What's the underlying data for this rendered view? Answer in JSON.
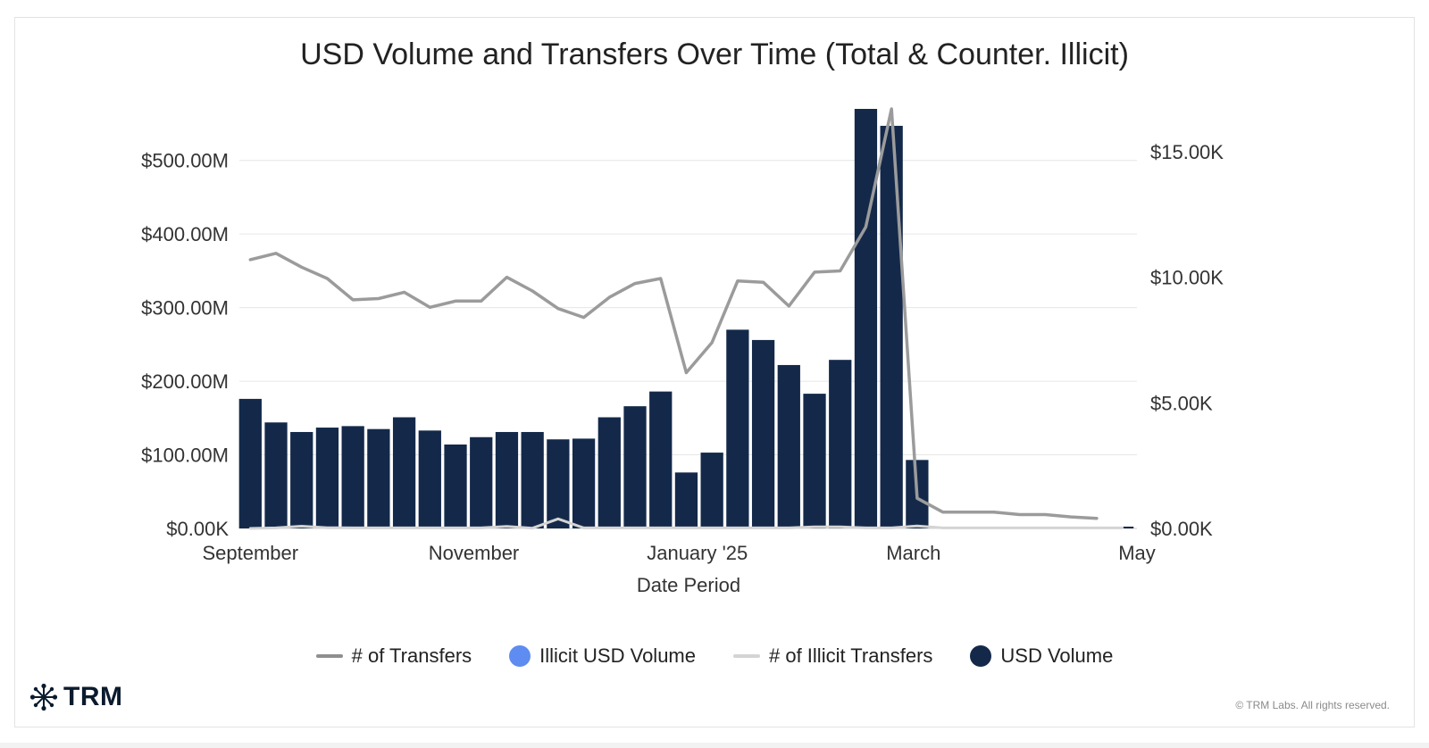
{
  "chart_data": {
    "type": "bar",
    "title": "USD Volume and Transfers Over Time (Total & Counter. Illicit)",
    "xlabel": "Date Period",
    "x_ticks": [
      "September",
      "November",
      "January '25",
      "March",
      "May"
    ],
    "y_left": {
      "ticks": [
        "$0.00K",
        "$100.00M",
        "$200.00M",
        "$300.00M",
        "$400.00M",
        "$500.00M"
      ],
      "range": [
        0,
        570000000
      ]
    },
    "y_right": {
      "ticks": [
        "$0.00K",
        "$5.00K",
        "$10.00K",
        "$15.00K"
      ],
      "range": [
        0,
        16700
      ]
    },
    "grid": true,
    "legend_position": "bottom",
    "x": [
      "2024-09-01",
      "2024-09-08",
      "2024-09-15",
      "2024-09-22",
      "2024-09-29",
      "2024-10-06",
      "2024-10-13",
      "2024-10-20",
      "2024-10-27",
      "2024-11-03",
      "2024-11-10",
      "2024-11-17",
      "2024-11-24",
      "2024-12-01",
      "2024-12-08",
      "2024-12-15",
      "2024-12-22",
      "2024-12-29",
      "2025-01-05",
      "2025-01-12",
      "2025-01-19",
      "2025-01-26",
      "2025-02-02",
      "2025-02-09",
      "2025-02-16",
      "2025-02-23",
      "2025-03-02",
      "2025-03-09",
      "2025-03-16",
      "2025-03-23",
      "2025-03-30",
      "2025-04-06",
      "2025-04-13",
      "2025-04-20",
      "2025-04-27"
    ],
    "series": [
      {
        "name": "USD Volume",
        "axis": "left",
        "kind": "bar",
        "color": "#14294a",
        "values": [
          176000000,
          144000000,
          131000000,
          137000000,
          139000000,
          135000000,
          151000000,
          133000000,
          114000000,
          124000000,
          131000000,
          131000000,
          121000000,
          122000000,
          151000000,
          166000000,
          186000000,
          76000000,
          103000000,
          270000000,
          256000000,
          222000000,
          183000000,
          229000000,
          570000000,
          547000000,
          93000000,
          0,
          0,
          0,
          0,
          0,
          0,
          0,
          2000000
        ]
      },
      {
        "name": "# of Transfers",
        "axis": "right",
        "kind": "line",
        "color": "#9b9b9b",
        "values": [
          10700,
          10950,
          10400,
          9950,
          9100,
          9150,
          9400,
          8800,
          9050,
          9050,
          10000,
          9450,
          8750,
          8400,
          9200,
          9750,
          9950,
          6200,
          7400,
          9850,
          9800,
          8850,
          10200,
          10250,
          12000,
          16700,
          1200,
          650,
          650,
          650,
          550,
          550,
          460,
          400,
          null
        ]
      },
      {
        "name": "# of Illicit Transfers",
        "axis": "right",
        "kind": "line",
        "color": "#d4d4d4",
        "values": [
          0,
          20,
          90,
          30,
          20,
          20,
          20,
          20,
          20,
          20,
          80,
          10,
          380,
          20,
          20,
          20,
          20,
          20,
          20,
          20,
          20,
          20,
          60,
          60,
          20,
          20,
          100,
          20,
          20,
          20,
          20,
          20,
          20,
          20,
          20
        ]
      },
      {
        "name": "Illicit USD Volume",
        "axis": "left",
        "kind": "bar",
        "color": "#5e8cf0",
        "values": [
          0,
          0,
          0,
          0,
          0,
          0,
          0,
          0,
          0,
          0,
          0,
          0,
          0,
          0,
          0,
          0,
          0,
          0,
          0,
          0,
          0,
          0,
          0,
          0,
          0,
          0,
          0,
          0,
          0,
          0,
          0,
          0,
          0,
          0,
          0
        ]
      }
    ]
  },
  "legend": [
    {
      "label": "# of Transfers",
      "shape": "line",
      "color": "#8f8f8f"
    },
    {
      "label": "Illicit USD Volume",
      "shape": "dot",
      "color": "#5e8cf0"
    },
    {
      "label": "# of Illicit Transfers",
      "shape": "line",
      "color": "#d4d4d4"
    },
    {
      "label": "USD Volume",
      "shape": "dot",
      "color": "#14294a"
    }
  ],
  "logo": {
    "text": "TRM",
    "icon": "trm-logo-icon"
  },
  "copyright": "© TRM Labs. All rights reserved."
}
